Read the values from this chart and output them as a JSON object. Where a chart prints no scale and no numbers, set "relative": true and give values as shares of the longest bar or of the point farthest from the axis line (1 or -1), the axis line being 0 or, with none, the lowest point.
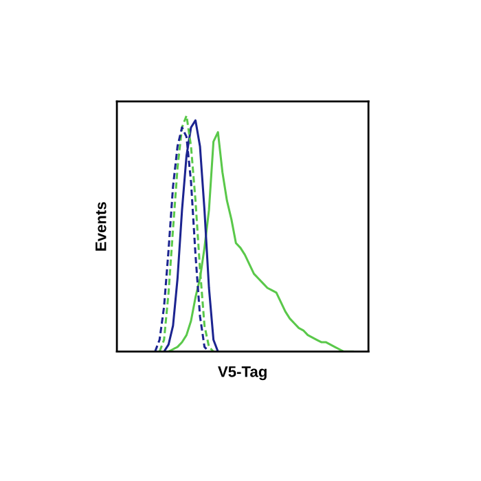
{
  "chart_data": {
    "type": "line",
    "relative": true,
    "xlabel": "V5-Tag",
    "ylabel": "Events",
    "categories": [
      null,
      null,
      null,
      null,
      null,
      null,
      null,
      null,
      null,
      null,
      null,
      null,
      null,
      null,
      null,
      null,
      null,
      null,
      null,
      null,
      null,
      null,
      null,
      null,
      null,
      null,
      null,
      null,
      null,
      null,
      null,
      null,
      null,
      null,
      null,
      null,
      null,
      null,
      null,
      null,
      null,
      null,
      null,
      null,
      null,
      null,
      null,
      null,
      null,
      null,
      null,
      null,
      null,
      null,
      null,
      null
    ],
    "series": [
      {
        "color": "#5ac84a",
        "line_style": "solid",
        "values": [
          null,
          null,
          null,
          null,
          null,
          null,
          null,
          null,
          null,
          null,
          null,
          0,
          0.01,
          0.02,
          0.04,
          0.07,
          0.13,
          0.23,
          0.31,
          0.44,
          0.6,
          0.89,
          0.93,
          0.76,
          0.64,
          0.56,
          0.46,
          0.44,
          0.41,
          0.37,
          0.33,
          0.31,
          0.29,
          0.27,
          0.26,
          0.25,
          0.21,
          0.17,
          0.14,
          0.12,
          0.1,
          0.09,
          0.07,
          0.06,
          0.05,
          0.04,
          0.04,
          0.03,
          0.02,
          0.01,
          0,
          0,
          0,
          null,
          null,
          null
        ]
      },
      {
        "color": "#1c2490",
        "line_style": "solid",
        "values": [
          null,
          null,
          null,
          null,
          null,
          null,
          null,
          null,
          null,
          null,
          0,
          0.03,
          0.11,
          0.31,
          0.6,
          0.83,
          0.95,
          0.98,
          0.87,
          0.6,
          0.27,
          0.05,
          0,
          null,
          null,
          null,
          null,
          null,
          null,
          null,
          null,
          null,
          null,
          null,
          null,
          null,
          null,
          null,
          null,
          null,
          null,
          null,
          null,
          null,
          null,
          null,
          null,
          null,
          null,
          null,
          null,
          null,
          null,
          null,
          null,
          null
        ]
      },
      {
        "color": "#5ac84a",
        "line_style": "dashed",
        "values": [
          null,
          null,
          null,
          null,
          null,
          null,
          null,
          null,
          null,
          0,
          0.05,
          0.25,
          0.52,
          0.78,
          0.95,
          1.0,
          0.87,
          0.64,
          0.35,
          0.11,
          0.02,
          0,
          null,
          null,
          null,
          null,
          null,
          null,
          null,
          null,
          null,
          null,
          null,
          null,
          null,
          null,
          null,
          null,
          null,
          null,
          null,
          null,
          null,
          null,
          null,
          null,
          null,
          null,
          null,
          null,
          null,
          null,
          null,
          null,
          null,
          null
        ]
      },
      {
        "color": "#1c2490",
        "line_style": "dashed",
        "values": [
          null,
          null,
          null,
          null,
          null,
          null,
          null,
          null,
          0,
          0.05,
          0.19,
          0.43,
          0.7,
          0.87,
          0.95,
          0.91,
          0.72,
          0.41,
          0.15,
          0.02,
          0,
          null,
          null,
          null,
          null,
          null,
          null,
          null,
          null,
          null,
          null,
          null,
          null,
          null,
          null,
          null,
          null,
          null,
          null,
          null,
          null,
          null,
          null,
          null,
          null,
          null,
          null,
          null,
          null,
          null,
          null,
          null,
          null,
          null,
          null,
          null
        ]
      }
    ]
  }
}
